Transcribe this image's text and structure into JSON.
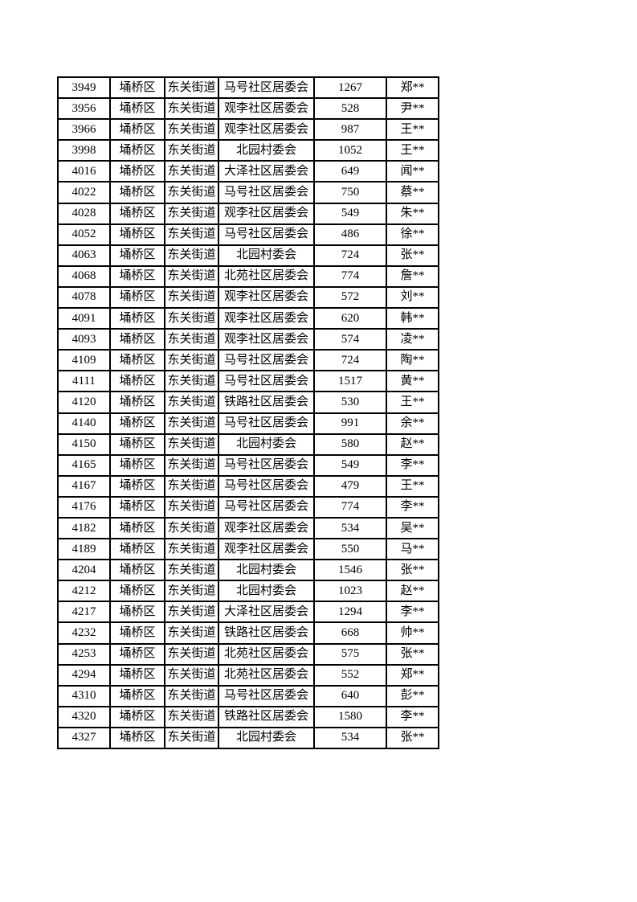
{
  "page": {
    "background_color": "#ffffff",
    "text_color": "#000000",
    "border_color": "#000000"
  },
  "table": {
    "columns": [
      "serial",
      "district",
      "street",
      "community",
      "count",
      "name"
    ],
    "rows": [
      {
        "serial": "3949",
        "district": "埇桥区",
        "street": "东关街道",
        "community": "马号社区居委会",
        "count": "1267",
        "name": "郑**"
      },
      {
        "serial": "3956",
        "district": "埇桥区",
        "street": "东关街道",
        "community": "观李社区居委会",
        "count": "528",
        "name": "尹**"
      },
      {
        "serial": "3966",
        "district": "埇桥区",
        "street": "东关街道",
        "community": "观李社区居委会",
        "count": "987",
        "name": "王**"
      },
      {
        "serial": "3998",
        "district": "埇桥区",
        "street": "东关街道",
        "community": "北园村委会",
        "count": "1052",
        "name": "王**"
      },
      {
        "serial": "4016",
        "district": "埇桥区",
        "street": "东关街道",
        "community": "大泽社区居委会",
        "count": "649",
        "name": "闻**"
      },
      {
        "serial": "4022",
        "district": "埇桥区",
        "street": "东关街道",
        "community": "马号社区居委会",
        "count": "750",
        "name": "蔡**"
      },
      {
        "serial": "4028",
        "district": "埇桥区",
        "street": "东关街道",
        "community": "观李社区居委会",
        "count": "549",
        "name": "朱**"
      },
      {
        "serial": "4052",
        "district": "埇桥区",
        "street": "东关街道",
        "community": "马号社区居委会",
        "count": "486",
        "name": "徐**"
      },
      {
        "serial": "4063",
        "district": "埇桥区",
        "street": "东关街道",
        "community": "北园村委会",
        "count": "724",
        "name": "张**"
      },
      {
        "serial": "4068",
        "district": "埇桥区",
        "street": "东关街道",
        "community": "北苑社区居委会",
        "count": "774",
        "name": "詹**"
      },
      {
        "serial": "4078",
        "district": "埇桥区",
        "street": "东关街道",
        "community": "观李社区居委会",
        "count": "572",
        "name": "刘**"
      },
      {
        "serial": "4091",
        "district": "埇桥区",
        "street": "东关街道",
        "community": "观李社区居委会",
        "count": "620",
        "name": "韩**"
      },
      {
        "serial": "4093",
        "district": "埇桥区",
        "street": "东关街道",
        "community": "观李社区居委会",
        "count": "574",
        "name": "凌**"
      },
      {
        "serial": "4109",
        "district": "埇桥区",
        "street": "东关街道",
        "community": "马号社区居委会",
        "count": "724",
        "name": "陶**"
      },
      {
        "serial": "4111",
        "district": "埇桥区",
        "street": "东关街道",
        "community": "马号社区居委会",
        "count": "1517",
        "name": "黄**"
      },
      {
        "serial": "4120",
        "district": "埇桥区",
        "street": "东关街道",
        "community": "铁路社区居委会",
        "count": "530",
        "name": "王**"
      },
      {
        "serial": "4140",
        "district": "埇桥区",
        "street": "东关街道",
        "community": "马号社区居委会",
        "count": "991",
        "name": "余**"
      },
      {
        "serial": "4150",
        "district": "埇桥区",
        "street": "东关街道",
        "community": "北园村委会",
        "count": "580",
        "name": "赵**"
      },
      {
        "serial": "4165",
        "district": "埇桥区",
        "street": "东关街道",
        "community": "马号社区居委会",
        "count": "549",
        "name": "李**"
      },
      {
        "serial": "4167",
        "district": "埇桥区",
        "street": "东关街道",
        "community": "马号社区居委会",
        "count": "479",
        "name": "王**"
      },
      {
        "serial": "4176",
        "district": "埇桥区",
        "street": "东关街道",
        "community": "马号社区居委会",
        "count": "774",
        "name": "李**"
      },
      {
        "serial": "4182",
        "district": "埇桥区",
        "street": "东关街道",
        "community": "观李社区居委会",
        "count": "534",
        "name": "吴**"
      },
      {
        "serial": "4189",
        "district": "埇桥区",
        "street": "东关街道",
        "community": "观李社区居委会",
        "count": "550",
        "name": "马**"
      },
      {
        "serial": "4204",
        "district": "埇桥区",
        "street": "东关街道",
        "community": "北园村委会",
        "count": "1546",
        "name": "张**"
      },
      {
        "serial": "4212",
        "district": "埇桥区",
        "street": "东关街道",
        "community": "北园村委会",
        "count": "1023",
        "name": "赵**"
      },
      {
        "serial": "4217",
        "district": "埇桥区",
        "street": "东关街道",
        "community": "大泽社区居委会",
        "count": "1294",
        "name": "李**"
      },
      {
        "serial": "4232",
        "district": "埇桥区",
        "street": "东关街道",
        "community": "铁路社区居委会",
        "count": "668",
        "name": "帅**"
      },
      {
        "serial": "4253",
        "district": "埇桥区",
        "street": "东关街道",
        "community": "北苑社区居委会",
        "count": "575",
        "name": "张**"
      },
      {
        "serial": "4294",
        "district": "埇桥区",
        "street": "东关街道",
        "community": "北苑社区居委会",
        "count": "552",
        "name": "郑**"
      },
      {
        "serial": "4310",
        "district": "埇桥区",
        "street": "东关街道",
        "community": "马号社区居委会",
        "count": "640",
        "name": "彭**"
      },
      {
        "serial": "4320",
        "district": "埇桥区",
        "street": "东关街道",
        "community": "铁路社区居委会",
        "count": "1580",
        "name": "李**"
      },
      {
        "serial": "4327",
        "district": "埇桥区",
        "street": "东关街道",
        "community": "北园村委会",
        "count": "534",
        "name": "张**"
      }
    ]
  }
}
